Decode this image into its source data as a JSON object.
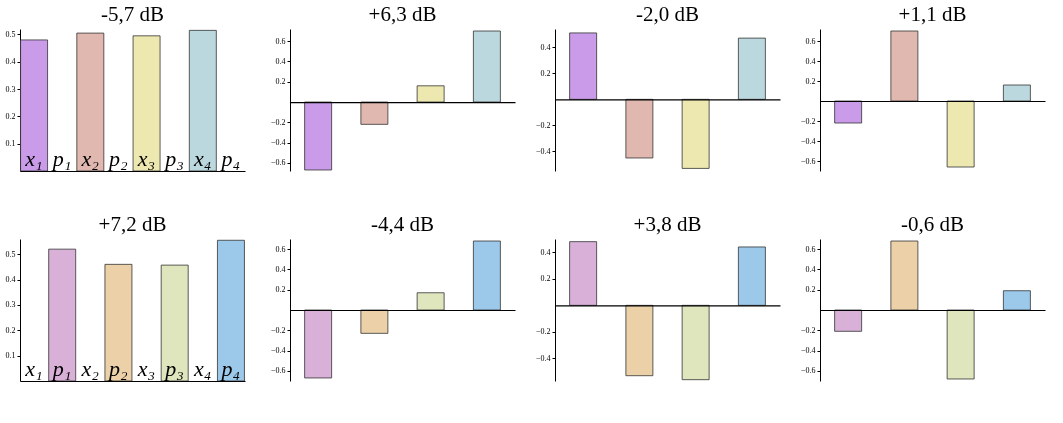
{
  "chart_data": [
    {
      "type": "bar",
      "title": "-5,7 dB",
      "categories": [
        "x₁",
        "p₁",
        "x₂",
        "p₂",
        "x₃",
        "p₃",
        "x₄",
        "p₄"
      ],
      "values": [
        0.48,
        null,
        0.505,
        null,
        0.495,
        null,
        0.515,
        null
      ],
      "colors": [
        "#c99be8",
        null,
        "#e0b8b0",
        null,
        "#ece8b0",
        null,
        "#bcd8df",
        null
      ],
      "ylim": [
        0,
        0.52
      ],
      "yticks": [
        0.1,
        0.2,
        0.3,
        0.4,
        0.5
      ],
      "grid": false
    },
    {
      "type": "bar",
      "title": "+6,3 dB",
      "categories": [
        null,
        null,
        null,
        null
      ],
      "values": [
        -0.67,
        -0.22,
        0.16,
        0.7
      ],
      "colors": [
        "#c99be8",
        "#e0b8b0",
        "#ece8b0",
        "#bcd8df"
      ],
      "ylim": [
        -0.68,
        0.72
      ],
      "yticks": [
        -0.6,
        -0.4,
        -0.2,
        0.2,
        0.4,
        0.6
      ],
      "grid": false,
      "tick_labels": "y"
    },
    {
      "type": "bar",
      "title": "-2,0 dB",
      "categories": [
        null,
        null,
        null,
        null
      ],
      "values": [
        0.51,
        -0.45,
        -0.53,
        0.47
      ],
      "colors": [
        "#c99be8",
        "#e0b8b0",
        "#ece8b0",
        "#bcd8df"
      ],
      "ylim": [
        -0.55,
        0.54
      ],
      "yticks": [
        -0.4,
        -0.2,
        0.2,
        0.4
      ],
      "grid": false,
      "tick_labels": "y"
    },
    {
      "type": "bar",
      "title": "+1,1 dB",
      "categories": [
        null,
        null,
        null,
        null
      ],
      "values": [
        -0.22,
        0.7,
        -0.66,
        0.16
      ],
      "colors": [
        "#c99be8",
        "#e0b8b0",
        "#ece8b0",
        "#bcd8df"
      ],
      "ylim": [
        -0.7,
        0.72
      ],
      "yticks": [
        -0.6,
        -0.4,
        -0.2,
        0.2,
        0.4,
        0.6
      ],
      "grid": false,
      "tick_labels": "y"
    },
    {
      "type": "bar",
      "title": "+7,2 dB",
      "categories": [
        "x₁",
        "p₁",
        "x₂",
        "p₂",
        "x₃",
        "p₃",
        "x₄",
        "p₄"
      ],
      "values": [
        null,
        0.52,
        null,
        0.46,
        null,
        0.457,
        null,
        0.555
      ],
      "colors": [
        null,
        "#d8b0d8",
        null,
        "#ecd0a8",
        null,
        "#dfe5bd",
        null,
        "#9cc8ea"
      ],
      "ylim": [
        0,
        0.56
      ],
      "yticks": [
        0.1,
        0.2,
        0.3,
        0.4,
        0.5
      ],
      "grid": false
    },
    {
      "type": "bar",
      "title": "-4,4 dB",
      "categories": [
        null,
        null,
        null,
        null
      ],
      "values": [
        -0.67,
        -0.23,
        0.17,
        0.68
      ],
      "colors": [
        "#d8b0d8",
        "#ecd0a8",
        "#dfe5bd",
        "#9cc8ea"
      ],
      "ylim": [
        -0.7,
        0.7
      ],
      "yticks": [
        -0.6,
        -0.4,
        -0.2,
        0.2,
        0.4,
        0.6
      ],
      "grid": false,
      "tick_labels": "y"
    },
    {
      "type": "bar",
      "title": "+3,8 dB",
      "categories": [
        null,
        null,
        null,
        null
      ],
      "values": [
        0.48,
        -0.53,
        -0.56,
        0.44
      ],
      "colors": [
        "#d8b0d8",
        "#ecd0a8",
        "#dfe5bd",
        "#9cc8ea"
      ],
      "ylim": [
        -0.57,
        0.5
      ],
      "yticks": [
        -0.4,
        -0.2,
        0.2,
        0.4
      ],
      "grid": false,
      "tick_labels": "y"
    },
    {
      "type": "bar",
      "title": "-0,6 dB",
      "categories": [
        null,
        null,
        null,
        null
      ],
      "values": [
        -0.21,
        0.68,
        -0.68,
        0.19
      ],
      "colors": [
        "#d8b0d8",
        "#ecd0a8",
        "#dfe5bd",
        "#9cc8ea"
      ],
      "ylim": [
        -0.7,
        0.7
      ],
      "yticks": [
        -0.6,
        -0.4,
        -0.2,
        0.2,
        0.4,
        0.6
      ],
      "grid": false,
      "tick_labels": "y"
    }
  ]
}
